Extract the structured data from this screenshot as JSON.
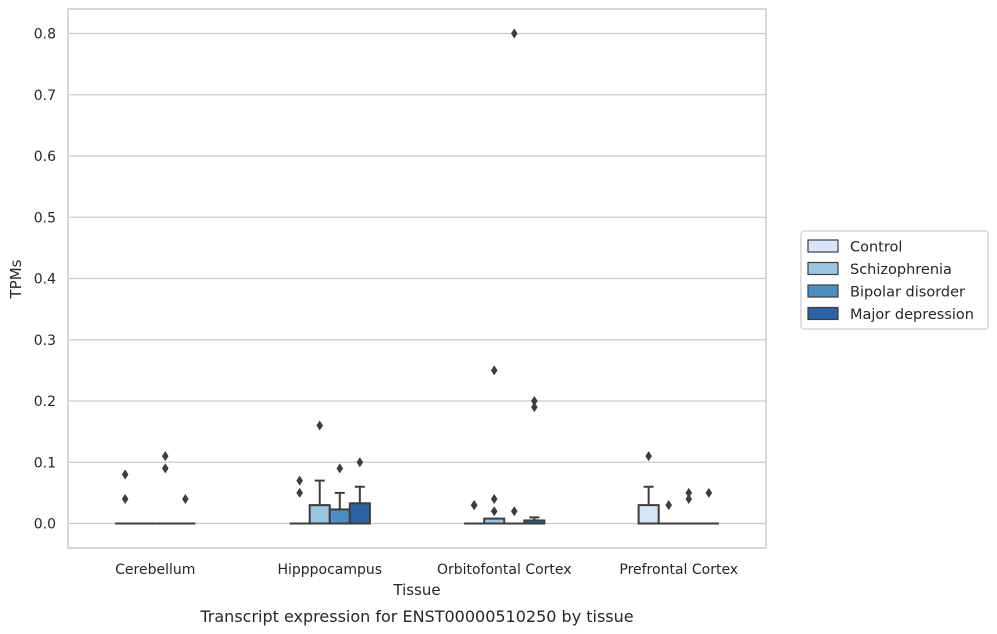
{
  "chart_data": {
    "type": "box",
    "caption": "Transcript expression for ENST00000510250 by tissue",
    "xlabel": "Tissue",
    "ylabel": "TPMs",
    "ylim": [
      -0.04,
      0.84
    ],
    "yticks": [
      0.0,
      0.1,
      0.2,
      0.3,
      0.4,
      0.5,
      0.6,
      0.7,
      0.8
    ],
    "ytick_labels": [
      "0.0",
      "0.1",
      "0.2",
      "0.3",
      "0.4",
      "0.5",
      "0.6",
      "0.7",
      "0.8"
    ],
    "grid": true,
    "legend_position": "right",
    "categories": [
      "Cerebellum",
      "Hipppocampus",
      "Orbitofontal Cortex",
      "Prefrontal Cortex"
    ],
    "series": [
      {
        "name": "Control",
        "color": "#d7e6f4",
        "boxes": [
          {
            "q1": 0,
            "median": 0,
            "q3": 0,
            "whislo": 0,
            "whishi": 0,
            "fliers": [
              0.04,
              0.08
            ]
          },
          {
            "q1": 0,
            "median": 0,
            "q3": 0,
            "whislo": 0,
            "whishi": 0,
            "fliers": [
              0.05,
              0.07
            ]
          },
          {
            "q1": 0,
            "median": 0,
            "q3": 0,
            "whislo": 0,
            "whishi": 0,
            "fliers": [
              0.03,
              0.03
            ]
          },
          {
            "q1": 0,
            "median": 0,
            "q3": 0.03,
            "whislo": 0,
            "whishi": 0.06,
            "fliers": [
              0.11
            ]
          }
        ]
      },
      {
        "name": "Schizophrenia",
        "color": "#9bc5e0",
        "boxes": [
          {
            "q1": 0,
            "median": 0,
            "q3": 0,
            "whislo": 0,
            "whishi": 0,
            "fliers": []
          },
          {
            "q1": 0,
            "median": 0,
            "q3": 0.03,
            "whislo": 0,
            "whishi": 0.07,
            "fliers": [
              0.16
            ]
          },
          {
            "q1": 0,
            "median": 0,
            "q3": 0.008,
            "whislo": 0,
            "whishi": 0.008,
            "fliers": [
              0.02,
              0.04,
              0.25
            ]
          },
          {
            "q1": 0,
            "median": 0,
            "q3": 0,
            "whislo": 0,
            "whishi": 0,
            "fliers": [
              0.03
            ]
          }
        ]
      },
      {
        "name": "Bipolar disorder",
        "color": "#4d8fc2",
        "boxes": [
          {
            "q1": 0,
            "median": 0,
            "q3": 0,
            "whislo": 0,
            "whishi": 0,
            "fliers": [
              0.09,
              0.11
            ]
          },
          {
            "q1": 0,
            "median": 0,
            "q3": 0.023,
            "whislo": 0,
            "whishi": 0.05,
            "fliers": [
              0.09
            ]
          },
          {
            "q1": 0,
            "median": 0,
            "q3": 0,
            "whislo": 0,
            "whishi": 0,
            "fliers": [
              0.02,
              0.8
            ]
          },
          {
            "q1": 0,
            "median": 0,
            "q3": 0,
            "whislo": 0,
            "whishi": 0,
            "fliers": [
              0.04,
              0.05
            ]
          }
        ]
      },
      {
        "name": "Major depression",
        "color": "#2b63a4",
        "boxes": [
          {
            "q1": 0,
            "median": 0,
            "q3": 0,
            "whislo": 0,
            "whishi": 0,
            "fliers": [
              0.04
            ]
          },
          {
            "q1": 0,
            "median": 0,
            "q3": 0.033,
            "whislo": 0,
            "whishi": 0.06,
            "fliers": [
              0.1
            ]
          },
          {
            "q1": 0,
            "median": 0,
            "q3": 0.005,
            "whislo": 0,
            "whishi": 0.01,
            "fliers": [
              0.19,
              0.2
            ]
          },
          {
            "q1": 0,
            "median": 0,
            "q3": 0,
            "whislo": 0,
            "whishi": 0,
            "fliers": [
              0.05
            ]
          }
        ]
      }
    ]
  }
}
